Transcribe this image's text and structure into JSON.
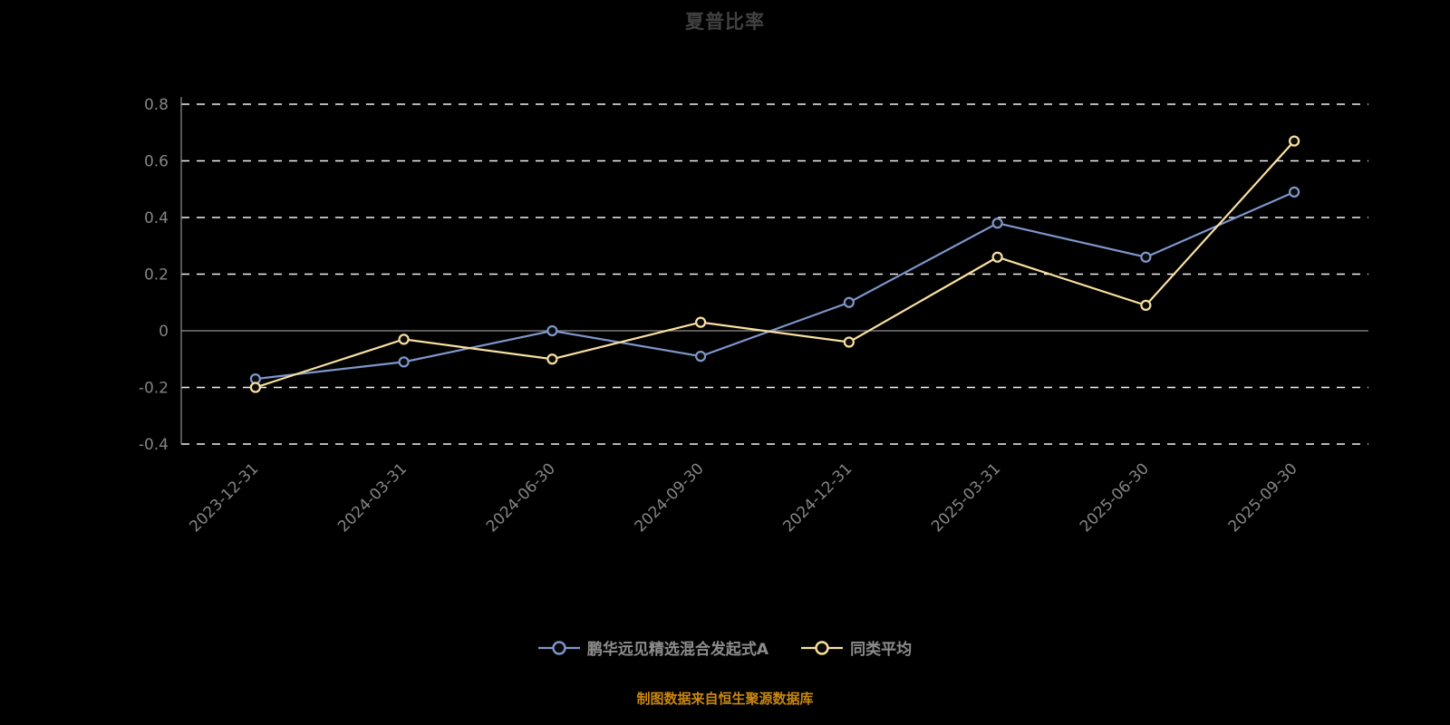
{
  "title": "夏普比率",
  "footer_note": "制图数据来自恒生聚源数据库",
  "colors": {
    "background": "#000000",
    "title": "#414141",
    "grid": "#f2f2f2",
    "zero_axis": "#8f8f8f",
    "axis": "#8f8f8f",
    "tick_label": "#848484",
    "legend_text": "#8c8c8c",
    "footer": "#c9870e",
    "marker_fill": "#0a0a0a"
  },
  "chart_data": {
    "type": "line",
    "title": "夏普比率",
    "x": [
      "2023-12-31",
      "2024-03-31",
      "2024-06-30",
      "2024-09-30",
      "2024-12-31",
      "2025-03-31",
      "2025-06-30",
      "2025-09-30"
    ],
    "series": [
      {
        "name": "鹏华远见精选混合发起式A",
        "color": "#7e96ca",
        "values": [
          -0.17,
          -0.11,
          0.0,
          -0.09,
          0.1,
          0.38,
          0.26,
          0.49
        ]
      },
      {
        "name": "同类平均",
        "color": "#f9e0a0",
        "values": [
          -0.2,
          -0.03,
          -0.1,
          0.03,
          -0.04,
          0.26,
          0.09,
          0.67
        ]
      }
    ],
    "ylim": [
      -0.4,
      0.8
    ],
    "yticks": [
      -0.4,
      -0.2,
      0,
      0.2,
      0.4,
      0.6,
      0.8
    ],
    "grid": "dashed-horizontal",
    "x_label_rotation": -45,
    "legend_position": "bottom",
    "source_note": "制图数据来自恒生聚源数据库"
  }
}
